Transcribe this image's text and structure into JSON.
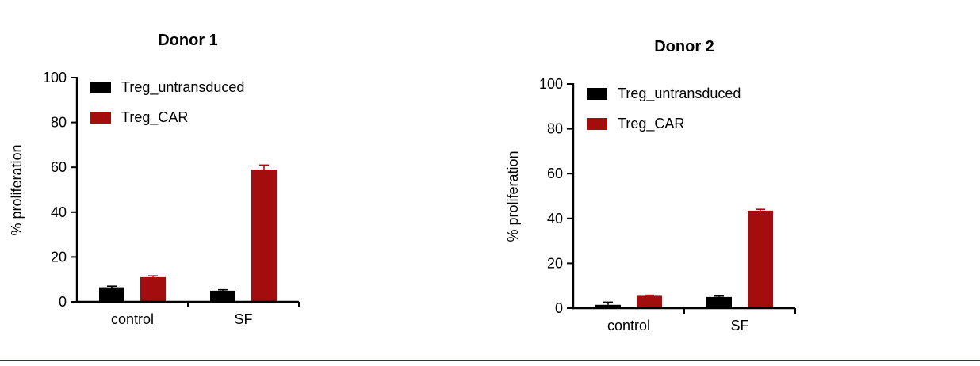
{
  "page": {
    "divider_color": "#253a40"
  },
  "chart_data": [
    {
      "type": "bar",
      "title": "Donor 1",
      "xlabel": "",
      "ylabel": "% proliferation",
      "ylim": [
        0,
        100
      ],
      "yticks": [
        0,
        20,
        40,
        60,
        80,
        100
      ],
      "categories": [
        "control",
        "SF"
      ],
      "grid": false,
      "legend_position": "top-left-inside",
      "series": [
        {
          "name": "Treg_untransduced",
          "color": "#000000",
          "values": [
            6.5,
            5.0
          ],
          "errors": [
            0.5,
            0.4
          ]
        },
        {
          "name": "Treg_CAR",
          "color": "#A30D0D",
          "values": [
            11.0,
            59.0
          ],
          "errors": [
            0.6,
            2.0
          ]
        }
      ]
    },
    {
      "type": "bar",
      "title": "Donor 2",
      "xlabel": "",
      "ylabel": "% proliferation",
      "ylim": [
        0,
        100
      ],
      "yticks": [
        0,
        20,
        40,
        60,
        80,
        100
      ],
      "categories": [
        "control",
        "SF"
      ],
      "grid": false,
      "legend_position": "top-left-inside",
      "series": [
        {
          "name": "Treg_untransduced",
          "color": "#000000",
          "values": [
            1.5,
            5.0
          ],
          "errors": [
            1.2,
            0.4
          ]
        },
        {
          "name": "Treg_CAR",
          "color": "#A30D0D",
          "values": [
            5.5,
            43.5
          ],
          "errors": [
            0.3,
            0.6
          ]
        }
      ]
    }
  ]
}
